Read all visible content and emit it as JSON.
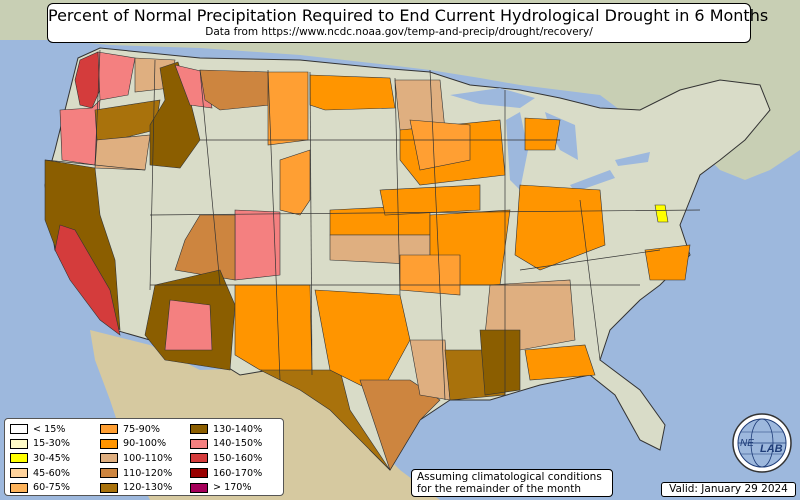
{
  "header": {
    "title": "Percent of Normal Precipitation Required to End Current Hydrological Drought in 6 Months",
    "subtitle": "Data from https://www.ncdc.noaa.gov/temp-and-precip/drought/recovery/"
  },
  "legend": {
    "items": [
      {
        "label": "< 15%",
        "color": "#ffffff"
      },
      {
        "label": "15-30%",
        "color": "#fffbc7"
      },
      {
        "label": "30-45%",
        "color": "#ffff00"
      },
      {
        "label": "45-60%",
        "color": "#ffd39c"
      },
      {
        "label": "60-75%",
        "color": "#fdb35b"
      },
      {
        "label": "75-90%",
        "color": "#ff9f33"
      },
      {
        "label": "90-100%",
        "color": "#ff9500"
      },
      {
        "label": "100-110%",
        "color": "#dfaf80"
      },
      {
        "label": "110-120%",
        "color": "#cd853f"
      },
      {
        "label": "120-130%",
        "color": "#a9720c"
      },
      {
        "label": "130-140%",
        "color": "#8b5e00"
      },
      {
        "label": "140-150%",
        "color": "#f48080"
      },
      {
        "label": "150-160%",
        "color": "#d43c3c"
      },
      {
        "label": "160-170%",
        "color": "#990000"
      },
      {
        "label": "> 170%",
        "color": "#a5005a"
      }
    ]
  },
  "note": {
    "line1": "Assuming climatological conditions",
    "line2": "for the remainder of the month"
  },
  "valid_label": "Valid: January 29 2024",
  "logo": {
    "text_left": "NE",
    "text_right": "LAB",
    "icon": "globe-logo-icon"
  },
  "colors": {
    "ocean": "#9db8dd",
    "land": "#d9dcc8",
    "terrain": "#cdc6a6",
    "state_border": "#333333"
  }
}
